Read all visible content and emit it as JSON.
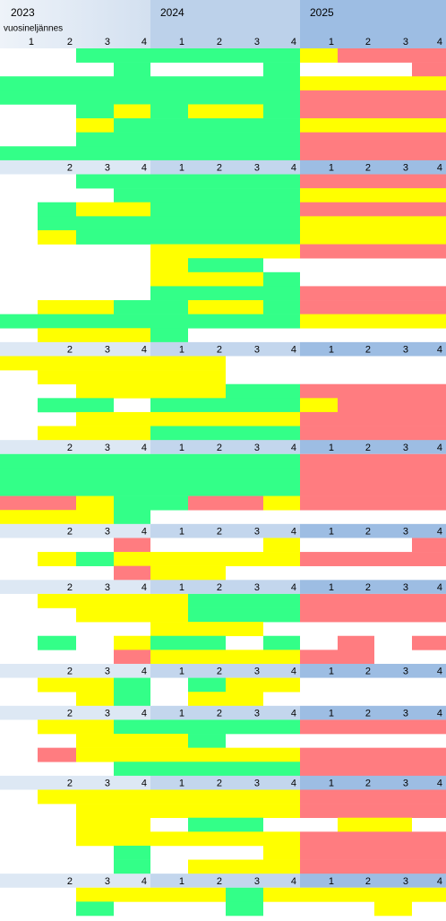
{
  "header": {
    "years": [
      "2023",
      "2024",
      "2025"
    ],
    "subtitle": "vuosineljännes",
    "quarters": [
      "1",
      "2",
      "3",
      "4",
      "1",
      "2",
      "3",
      "4",
      "1",
      "2",
      "3",
      "4"
    ]
  },
  "rows": [
    {
      "cells": [
        null,
        null,
        "#33ff88",
        "#33ff88",
        "#33ff88",
        "#33ff88",
        "#33ff88",
        "#33ff88",
        "#ffff00",
        "#ff7c80",
        "#ff7c80",
        "#ff7c80"
      ]
    },
    {
      "cells": [
        null,
        null,
        null,
        "#33ff88",
        null,
        null,
        null,
        "#33ff88",
        null,
        null,
        null,
        "#ff7c80"
      ]
    },
    {
      "cells": [
        "#33ff88",
        "#33ff88",
        "#33ff88",
        "#33ff88",
        "#33ff88",
        "#33ff88",
        "#33ff88",
        "#33ff88",
        "#ffff00",
        "#ffff00",
        "#ffff00",
        "#ffff00"
      ]
    },
    {
      "cells": [
        "#33ff88",
        "#33ff88",
        "#33ff88",
        "#33ff88",
        "#33ff88",
        "#33ff88",
        "#33ff88",
        "#33ff88",
        "#ff7c80",
        "#ff7c80",
        "#ff7c80",
        "#ff7c80"
      ]
    },
    {
      "cells": [
        null,
        null,
        "#33ff88",
        "#ffff00",
        "#33ff88",
        "#ffff00",
        "#ffff00",
        "#33ff88",
        "#ff7c80",
        "#ff7c80",
        "#ff7c80",
        "#ff7c80"
      ]
    },
    {
      "cells": [
        null,
        null,
        "#ffff00",
        "#33ff88",
        "#33ff88",
        "#33ff88",
        "#33ff88",
        "#33ff88",
        "#ffff00",
        "#ffff00",
        "#ffff00",
        "#ffff00"
      ]
    },
    {
      "cells": [
        null,
        null,
        "#33ff88",
        "#33ff88",
        "#33ff88",
        "#33ff88",
        "#33ff88",
        "#33ff88",
        "#ff7c80",
        "#ff7c80",
        "#ff7c80",
        "#ff7c80"
      ]
    },
    {
      "cells": [
        "#33ff88",
        "#33ff88",
        "#33ff88",
        "#33ff88",
        "#33ff88",
        "#33ff88",
        "#33ff88",
        "#33ff88",
        "#ff7c80",
        "#ff7c80",
        "#ff7c80",
        "#ff7c80"
      ]
    },
    {
      "quarters": [
        null,
        "2",
        "3",
        "4",
        "1",
        "2",
        "3",
        "4",
        "1",
        "2",
        "3",
        "4"
      ]
    },
    {
      "cells": [
        null,
        null,
        "#33ff88",
        "#33ff88",
        "#33ff88",
        "#33ff88",
        "#33ff88",
        "#33ff88",
        "#ff7c80",
        "#ff7c80",
        "#ff7c80",
        "#ff7c80"
      ]
    },
    {
      "cells": [
        null,
        null,
        null,
        "#33ff88",
        "#33ff88",
        "#33ff88",
        "#33ff88",
        "#33ff88",
        "#ffff00",
        "#ffff00",
        "#ffff00",
        "#ffff00"
      ]
    },
    {
      "cells": [
        null,
        "#33ff88",
        "#ffff00",
        "#ffff00",
        "#33ff88",
        "#33ff88",
        "#33ff88",
        "#33ff88",
        "#ff7c80",
        "#ff7c80",
        "#ff7c80",
        "#ff7c80"
      ]
    },
    {
      "cells": [
        null,
        "#33ff88",
        "#33ff88",
        "#33ff88",
        "#33ff88",
        "#33ff88",
        "#33ff88",
        "#33ff88",
        "#ffff00",
        "#ffff00",
        "#ffff00",
        "#ffff00"
      ]
    },
    {
      "cells": [
        null,
        "#ffff00",
        "#33ff88",
        "#33ff88",
        "#33ff88",
        "#33ff88",
        "#33ff88",
        "#33ff88",
        "#ffff00",
        "#ffff00",
        "#ffff00",
        "#ffff00"
      ]
    },
    {
      "cells": [
        null,
        null,
        null,
        null,
        "#ffff00",
        "#ffff00",
        "#ffff00",
        "#ffff00",
        "#ff7c80",
        "#ff7c80",
        "#ff7c80",
        "#ff7c80"
      ]
    },
    {
      "cells": [
        null,
        null,
        null,
        null,
        "#ffff00",
        "#33ff88",
        "#33ff88",
        null,
        null,
        null,
        null,
        null
      ]
    },
    {
      "cells": [
        null,
        null,
        null,
        null,
        "#ffff00",
        "#ffff00",
        "#ffff00",
        "#33ff88",
        null,
        null,
        null,
        null
      ]
    },
    {
      "cells": [
        null,
        null,
        null,
        null,
        "#33ff88",
        "#33ff88",
        "#33ff88",
        "#33ff88",
        "#ff7c80",
        "#ff7c80",
        "#ff7c80",
        "#ff7c80"
      ]
    },
    {
      "cells": [
        null,
        "#ffff00",
        "#ffff00",
        "#33ff88",
        "#33ff88",
        "#ffff00",
        "#ffff00",
        "#33ff88",
        "#ff7c80",
        "#ff7c80",
        "#ff7c80",
        "#ff7c80"
      ]
    },
    {
      "cells": [
        "#33ff88",
        "#33ff88",
        "#33ff88",
        "#33ff88",
        "#33ff88",
        "#33ff88",
        "#33ff88",
        "#33ff88",
        "#ffff00",
        "#ffff00",
        "#ffff00",
        "#ffff00"
      ]
    },
    {
      "cells": [
        null,
        "#ffff00",
        "#ffff00",
        "#ffff00",
        "#33ff88",
        null,
        null,
        null,
        null,
        null,
        null,
        null
      ]
    },
    {
      "quarters": [
        null,
        "2",
        "3",
        "4",
        "1",
        "2",
        "3",
        "4",
        "1",
        "2",
        "3",
        "4"
      ]
    },
    {
      "cells": [
        "#ffff00",
        "#ffff00",
        "#ffff00",
        "#ffff00",
        "#ffff00",
        "#ffff00",
        null,
        null,
        null,
        null,
        null,
        null
      ]
    },
    {
      "cells": [
        null,
        "#ffff00",
        "#ffff00",
        "#ffff00",
        "#ffff00",
        "#ffff00",
        null,
        null,
        null,
        null,
        null,
        null
      ]
    },
    {
      "cells": [
        null,
        null,
        "#ffff00",
        "#ffff00",
        "#ffff00",
        "#ffff00",
        "#33ff88",
        "#33ff88",
        "#ff7c80",
        "#ff7c80",
        "#ff7c80",
        "#ff7c80"
      ]
    },
    {
      "cells": [
        null,
        "#33ff88",
        "#33ff88",
        null,
        "#33ff88",
        "#33ff88",
        "#33ff88",
        "#33ff88",
        "#ffff00",
        "#ff7c80",
        "#ff7c80",
        "#ff7c80"
      ]
    },
    {
      "cells": [
        null,
        null,
        "#ffff00",
        "#ffff00",
        "#ffff00",
        "#ffff00",
        "#ffff00",
        "#ffff00",
        "#ff7c80",
        "#ff7c80",
        "#ff7c80",
        "#ff7c80"
      ]
    },
    {
      "cells": [
        null,
        "#ffff00",
        "#ffff00",
        "#ffff00",
        "#33ff88",
        "#33ff88",
        "#33ff88",
        "#33ff88",
        "#ff7c80",
        "#ff7c80",
        "#ff7c80",
        "#ff7c80"
      ]
    },
    {
      "quarters": [
        null,
        "2",
        "3",
        "4",
        "1",
        "2",
        "3",
        "4",
        "1",
        "2",
        "3",
        "4"
      ]
    },
    {
      "cells": [
        "#33ff88",
        "#33ff88",
        "#33ff88",
        "#33ff88",
        "#33ff88",
        "#33ff88",
        "#33ff88",
        "#33ff88",
        "#ff7c80",
        "#ff7c80",
        "#ff7c80",
        "#ff7c80"
      ]
    },
    {
      "cells": [
        "#33ff88",
        "#33ff88",
        "#33ff88",
        "#33ff88",
        "#33ff88",
        "#33ff88",
        "#33ff88",
        "#33ff88",
        "#ff7c80",
        "#ff7c80",
        "#ff7c80",
        "#ff7c80"
      ]
    },
    {
      "cells": [
        "#33ff88",
        "#33ff88",
        "#33ff88",
        "#33ff88",
        "#33ff88",
        "#33ff88",
        "#33ff88",
        "#33ff88",
        "#ff7c80",
        "#ff7c80",
        "#ff7c80",
        "#ff7c80"
      ]
    },
    {
      "cells": [
        "#ff7c80",
        "#ff7c80",
        "#ffff00",
        "#33ff88",
        "#33ff88",
        "#ff7c80",
        "#ff7c80",
        "#ffff00",
        "#ff7c80",
        "#ff7c80",
        "#ff7c80",
        "#ff7c80"
      ]
    },
    {
      "cells": [
        "#ffff00",
        "#ffff00",
        "#ffff00",
        "#33ff88",
        null,
        null,
        null,
        null,
        null,
        null,
        null,
        null
      ]
    },
    {
      "quarters": [
        null,
        "2",
        "3",
        "4",
        "1",
        "2",
        "3",
        "4",
        "1",
        "2",
        "3",
        "4"
      ]
    },
    {
      "cells": [
        null,
        null,
        null,
        "#ff7c80",
        null,
        null,
        null,
        "#ffff00",
        null,
        null,
        null,
        "#ff7c80"
      ]
    },
    {
      "cells": [
        null,
        "#ffff00",
        "#33ff88",
        "#ffff00",
        "#ffff00",
        "#ffff00",
        "#ffff00",
        "#ffff00",
        "#ff7c80",
        "#ff7c80",
        "#ff7c80",
        "#ff7c80"
      ]
    },
    {
      "cells": [
        null,
        null,
        null,
        "#ff7c80",
        "#ffff00",
        "#ffff00",
        null,
        null,
        null,
        null,
        null,
        null
      ]
    },
    {
      "quarters": [
        null,
        "2",
        "3",
        "4",
        "1",
        "2",
        "3",
        "4",
        "1",
        "2",
        "3",
        "4"
      ]
    },
    {
      "cells": [
        null,
        "#ffff00",
        "#ffff00",
        "#ffff00",
        "#ffff00",
        "#33ff88",
        "#33ff88",
        "#33ff88",
        "#ff7c80",
        "#ff7c80",
        "#ff7c80",
        "#ff7c80"
      ]
    },
    {
      "cells": [
        null,
        null,
        "#ffff00",
        "#ffff00",
        "#ffff00",
        "#33ff88",
        "#33ff88",
        "#33ff88",
        "#ff7c80",
        "#ff7c80",
        "#ff7c80",
        "#ff7c80"
      ]
    },
    {
      "cells": [
        null,
        null,
        null,
        null,
        "#ffff00",
        "#ffff00",
        "#ffff00",
        null,
        null,
        null,
        null,
        null
      ]
    },
    {
      "cells": [
        null,
        "#33ff88",
        null,
        "#ffff00",
        "#33ff88",
        "#33ff88",
        null,
        "#33ff88",
        null,
        "#ff7c80",
        null,
        "#ff7c80"
      ]
    },
    {
      "cells": [
        null,
        null,
        null,
        "#ff7c80",
        "#ffff00",
        "#ffff00",
        "#ffff00",
        "#ffff00",
        "#ff7c80",
        "#ff7c80",
        null,
        null
      ]
    },
    {
      "quarters": [
        null,
        "2",
        "3",
        "4",
        "1",
        "2",
        "3",
        "4",
        "1",
        "2",
        "3",
        "4"
      ]
    },
    {
      "cells": [
        null,
        "#ffff00",
        "#ffff00",
        "#33ff88",
        null,
        "#33ff88",
        "#ffff00",
        "#ffff00",
        null,
        null,
        null,
        null
      ]
    },
    {
      "cells": [
        null,
        null,
        "#ffff00",
        "#33ff88",
        null,
        "#ffff00",
        "#ffff00",
        null,
        null,
        null,
        null,
        null
      ]
    },
    {
      "quarters": [
        null,
        "2",
        "3",
        "4",
        "1",
        "2",
        "3",
        "4",
        "1",
        "2",
        "3",
        "4"
      ]
    },
    {
      "cells": [
        null,
        "#ffff00",
        "#ffff00",
        "#33ff88",
        "#33ff88",
        "#33ff88",
        "#33ff88",
        "#33ff88",
        "#ff7c80",
        "#ff7c80",
        "#ff7c80",
        "#ff7c80"
      ]
    },
    {
      "cells": [
        null,
        null,
        "#ffff00",
        "#ffff00",
        "#ffff00",
        "#33ff88",
        null,
        null,
        null,
        null,
        null,
        null
      ]
    },
    {
      "cells": [
        null,
        "#ff7c80",
        "#ffff00",
        "#ffff00",
        "#ffff00",
        "#ffff00",
        "#ffff00",
        "#ffff00",
        "#ff7c80",
        "#ff7c80",
        "#ff7c80",
        "#ff7c80"
      ]
    },
    {
      "cells": [
        null,
        null,
        null,
        "#33ff88",
        "#33ff88",
        "#33ff88",
        "#33ff88",
        "#33ff88",
        "#ff7c80",
        "#ff7c80",
        "#ff7c80",
        "#ff7c80"
      ]
    },
    {
      "quarters": [
        null,
        "2",
        "3",
        "4",
        "1",
        "2",
        "3",
        "4",
        "1",
        "2",
        "3",
        "4"
      ]
    },
    {
      "cells": [
        null,
        "#ffff00",
        "#ffff00",
        "#ffff00",
        "#ffff00",
        "#ffff00",
        "#ffff00",
        "#ffff00",
        "#ff7c80",
        "#ff7c80",
        "#ff7c80",
        "#ff7c80"
      ]
    },
    {
      "cells": [
        null,
        null,
        "#ffff00",
        "#ffff00",
        "#ffff00",
        "#ffff00",
        "#ffff00",
        "#ffff00",
        "#ff7c80",
        "#ff7c80",
        "#ff7c80",
        "#ff7c80"
      ]
    },
    {
      "cells": [
        null,
        null,
        "#ffff00",
        "#ffff00",
        null,
        "#33ff88",
        "#33ff88",
        null,
        null,
        "#ffff00",
        "#ffff00",
        null
      ]
    },
    {
      "cells": [
        null,
        null,
        "#ffff00",
        "#ffff00",
        "#ffff00",
        "#ffff00",
        "#ffff00",
        "#ffff00",
        "#ff7c80",
        "#ff7c80",
        "#ff7c80",
        "#ff7c80"
      ]
    },
    {
      "cells": [
        null,
        null,
        null,
        "#33ff88",
        null,
        null,
        null,
        "#ffff00",
        "#ff7c80",
        "#ff7c80",
        "#ff7c80",
        "#ff7c80"
      ]
    },
    {
      "cells": [
        null,
        null,
        null,
        "#33ff88",
        null,
        "#ffff00",
        "#ffff00",
        "#ffff00",
        "#ff7c80",
        "#ff7c80",
        "#ff7c80",
        "#ff7c80"
      ]
    },
    {
      "quarters": [
        null,
        "2",
        "3",
        "4",
        "1",
        "2",
        "3",
        "4",
        "1",
        "2",
        "3",
        "4"
      ]
    },
    {
      "cells": [
        null,
        null,
        "#ffff00",
        "#ffff00",
        "#ffff00",
        "#ffff00",
        "#33ff88",
        "#ffff00",
        "#ffff00",
        "#ffff00",
        "#ffff00",
        "#ffff00"
      ]
    },
    {
      "cells": [
        null,
        null,
        "#33ff88",
        null,
        null,
        null,
        "#33ff88",
        null,
        null,
        null,
        "#ffff00",
        null
      ]
    }
  ]
}
